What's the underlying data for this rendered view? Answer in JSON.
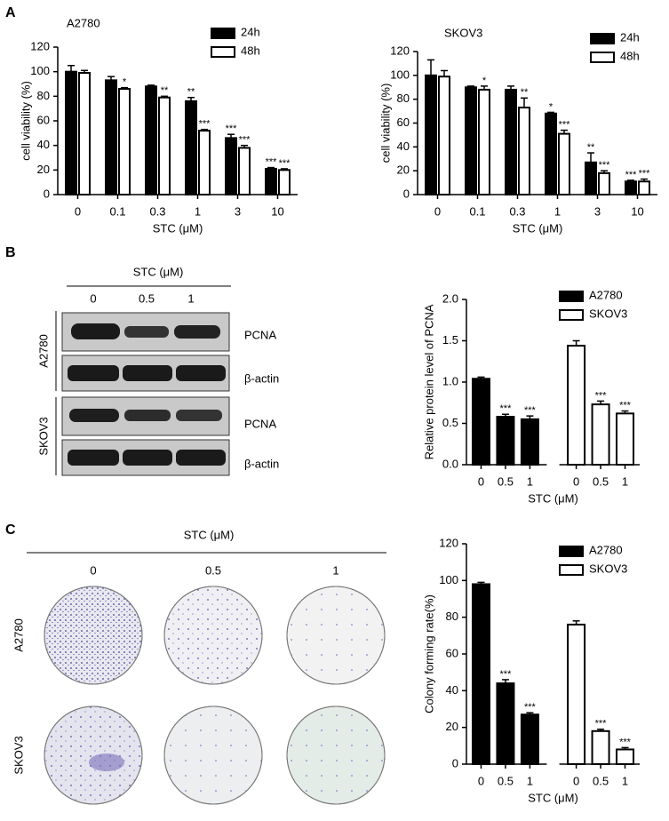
{
  "panel_labels": [
    "A",
    "B",
    "C"
  ],
  "blot": {
    "header": "STC (μM)",
    "doses": [
      "0",
      "0.5",
      "1"
    ],
    "cell_lines": [
      "A2780",
      "SKOV3"
    ],
    "proteins": [
      "PCNA",
      "β-actin",
      "PCNA",
      "β-actin"
    ]
  },
  "colony": {
    "header": "STC (μM)",
    "doses": [
      "0",
      "0.5",
      "1"
    ],
    "cell_lines": [
      "A2780",
      "SKOV3"
    ]
  },
  "chart_data": [
    {
      "type": "bar",
      "group_by": "category",
      "title": "A2780",
      "x_label": "STC (μM)",
      "y_label": "cell viability (%)",
      "categories": [
        "0",
        "0.1",
        "0.3",
        "1",
        "3",
        "10"
      ],
      "ylim": [
        0,
        120
      ],
      "yticks": [
        0,
        20,
        40,
        60,
        80,
        100,
        120
      ],
      "series": [
        {
          "name": "24h",
          "color": "#000000",
          "values": [
            100,
            93,
            88,
            76,
            46,
            21
          ],
          "errors": [
            5,
            3,
            1,
            3,
            3,
            1
          ],
          "annotations": [
            null,
            null,
            null,
            "**",
            "***",
            "***"
          ]
        },
        {
          "name": "48h",
          "color": "#ffffff",
          "values": [
            99,
            86,
            79,
            52,
            38,
            20
          ],
          "errors": [
            2,
            1,
            1,
            1,
            2,
            1
          ],
          "annotations": [
            null,
            "*",
            "**",
            "***",
            "***",
            "***"
          ]
        }
      ]
    },
    {
      "type": "bar",
      "group_by": "category",
      "title": "SKOV3",
      "x_label": "STC (μM)",
      "y_label": "cell viability (%)",
      "categories": [
        "0",
        "0.1",
        "0.3",
        "1",
        "3",
        "10"
      ],
      "ylim": [
        0,
        120
      ],
      "yticks": [
        0,
        20,
        40,
        60,
        80,
        100,
        120
      ],
      "series": [
        {
          "name": "24h",
          "color": "#000000",
          "values": [
            100,
            90,
            88,
            68,
            27,
            11
          ],
          "errors": [
            13,
            1,
            3,
            1,
            8,
            1
          ],
          "annotations": [
            null,
            null,
            null,
            "*",
            "**",
            "***"
          ]
        },
        {
          "name": "48h",
          "color": "#ffffff",
          "values": [
            99,
            88,
            73,
            51,
            18,
            11
          ],
          "errors": [
            5,
            3,
            8,
            3,
            2,
            2
          ],
          "annotations": [
            null,
            "*",
            "**",
            "***",
            "***",
            "***"
          ]
        }
      ]
    },
    {
      "type": "bar",
      "group_by": "series",
      "x_label": "STC (μM)",
      "y_label": "Relative protein level of PCNA",
      "categories": [
        "0",
        "0.5",
        "1"
      ],
      "ylim": [
        0,
        2
      ],
      "yticks": [
        {
          "value": 0,
          "label": "0.0"
        },
        {
          "value": 0.5,
          "label": "0.5"
        },
        {
          "value": 1,
          "label": "1.0"
        },
        {
          "value": 1.5,
          "label": "1.5"
        },
        {
          "value": 2,
          "label": "2.0"
        }
      ],
      "series": [
        {
          "name": "A2780",
          "color": "#000000",
          "values": [
            1.04,
            0.58,
            0.55
          ],
          "errors": [
            0.02,
            0.03,
            0.04
          ],
          "annotations": [
            null,
            "***",
            "***"
          ]
        },
        {
          "name": "SKOV3",
          "color": "#ffffff",
          "values": [
            1.44,
            0.73,
            0.62
          ],
          "errors": [
            0.06,
            0.04,
            0.03
          ],
          "annotations": [
            null,
            "***",
            "***"
          ]
        }
      ]
    },
    {
      "type": "bar",
      "group_by": "series",
      "x_label": "STC (μM)",
      "y_label": "Colony forming rate(%)",
      "categories": [
        "0",
        "0.5",
        "1"
      ],
      "ylim": [
        0,
        120
      ],
      "yticks": [
        0,
        20,
        40,
        60,
        80,
        100,
        120
      ],
      "series": [
        {
          "name": "A2780",
          "color": "#000000",
          "values": [
            98,
            44,
            27
          ],
          "errors": [
            1,
            2,
            1
          ],
          "annotations": [
            null,
            "***",
            "***"
          ]
        },
        {
          "name": "SKOV3",
          "color": "#ffffff",
          "values": [
            76,
            18,
            8
          ],
          "errors": [
            2,
            1,
            1
          ],
          "annotations": [
            null,
            "***",
            "***"
          ]
        }
      ]
    }
  ]
}
